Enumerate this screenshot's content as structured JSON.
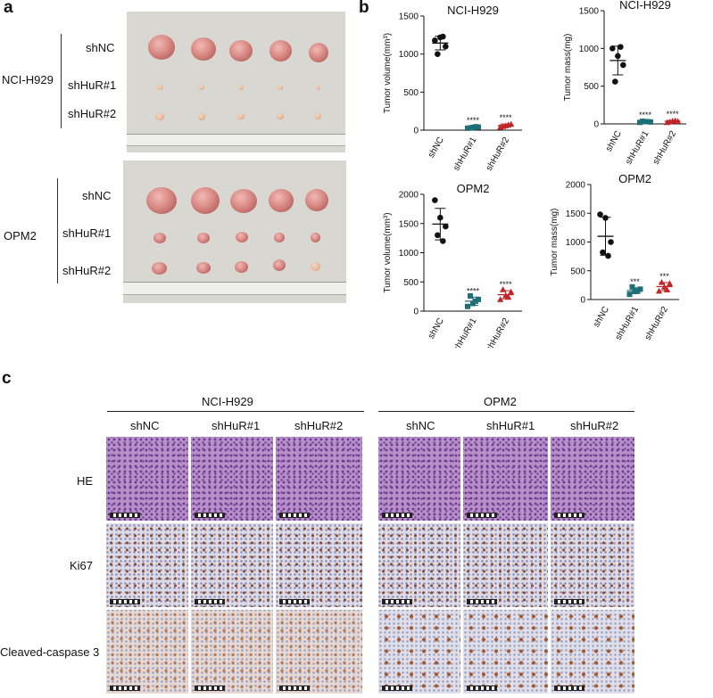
{
  "panel_a": {
    "letter": "a",
    "groups": [
      {
        "name": "NCI-H929",
        "rows": [
          "shNC",
          "shHuR#1",
          "shHuR#2"
        ]
      },
      {
        "name": "OPM2",
        "rows": [
          "shNC",
          "shHuR#1",
          "shHuR#2"
        ]
      }
    ]
  },
  "panel_b": {
    "letter": "b"
  },
  "chart_data": [
    {
      "type": "scatter",
      "title": "NCI-H929",
      "ylabel": "Tumor volume(mm³)",
      "categories": [
        "shNC",
        "shHuR#1",
        "shHuR#2"
      ],
      "ylim": [
        0,
        1500
      ],
      "yticks": [
        0,
        500,
        1000,
        1500
      ],
      "series": [
        {
          "category": "shNC",
          "points": [
            1180,
            1220,
            1100,
            1000,
            1230
          ],
          "mean": 1145,
          "sd": 90,
          "color": "#111111",
          "marker": "circle",
          "sig": ""
        },
        {
          "category": "shHuR#1",
          "points": [
            25,
            35,
            40,
            30,
            45
          ],
          "mean": 35,
          "sd": 10,
          "color": "#1f6f78",
          "marker": "square",
          "sig": "****"
        },
        {
          "category": "shHuR#2",
          "points": [
            40,
            60,
            80,
            50,
            70
          ],
          "mean": 60,
          "sd": 20,
          "color": "#c0262b",
          "marker": "triangle",
          "sig": "****"
        }
      ]
    },
    {
      "type": "scatter",
      "title": "NCI-H929",
      "ylabel": "Tumor mass(mg)",
      "categories": [
        "shNC",
        "shHuR#1",
        "shHuR#2"
      ],
      "ylim": [
        0,
        1500
      ],
      "yticks": [
        0,
        500,
        1000,
        1500
      ],
      "series": [
        {
          "category": "shNC",
          "points": [
            1000,
            900,
            780,
            560,
            1020
          ],
          "mean": 840,
          "sd": 190,
          "color": "#111111",
          "marker": "circle",
          "sig": ""
        },
        {
          "category": "shHuR#1",
          "points": [
            20,
            30,
            25,
            35,
            30
          ],
          "mean": 28,
          "sd": 8,
          "color": "#1f6f78",
          "marker": "square",
          "sig": "****"
        },
        {
          "category": "shHuR#2",
          "points": [
            20,
            40,
            35,
            30,
            45
          ],
          "mean": 35,
          "sd": 10,
          "color": "#c0262b",
          "marker": "triangle",
          "sig": "****"
        }
      ]
    },
    {
      "type": "scatter",
      "title": "OPM2",
      "ylabel": "Tumor volume(mm³)",
      "categories": [
        "shNC",
        "shHuR#1",
        "shHuR#2"
      ],
      "ylim": [
        0,
        2000
      ],
      "yticks": [
        0,
        500,
        1000,
        1500,
        2000
      ],
      "series": [
        {
          "category": "shNC",
          "points": [
            1900,
            1600,
            1450,
            1300,
            1200
          ],
          "mean": 1490,
          "sd": 270,
          "color": "#111111",
          "marker": "circle",
          "sig": ""
        },
        {
          "category": "shHuR#1",
          "points": [
            80,
            130,
            200,
            260,
            170
          ],
          "mean": 170,
          "sd": 70,
          "color": "#1f6f78",
          "marker": "square",
          "sig": "****"
        },
        {
          "category": "shHuR#2",
          "points": [
            200,
            270,
            330,
            370,
            240
          ],
          "mean": 280,
          "sd": 70,
          "color": "#c0262b",
          "marker": "triangle",
          "sig": "****"
        }
      ]
    },
    {
      "type": "scatter",
      "title": "OPM2",
      "ylabel": "Tumor mass(mg)",
      "categories": [
        "shNC",
        "shHuR#1",
        "shHuR#2"
      ],
      "ylim": [
        0,
        2000
      ],
      "yticks": [
        0,
        500,
        1000,
        1500,
        2000
      ],
      "series": [
        {
          "category": "shNC",
          "points": [
            1480,
            1420,
            1000,
            820,
            760
          ],
          "mean": 1100,
          "sd": 330,
          "color": "#111111",
          "marker": "circle",
          "sig": ""
        },
        {
          "category": "shHuR#1",
          "points": [
            90,
            140,
            180,
            220,
            150
          ],
          "mean": 155,
          "sd": 50,
          "color": "#1f6f78",
          "marker": "square",
          "sig": "***"
        },
        {
          "category": "shHuR#2",
          "points": [
            150,
            220,
            280,
            300,
            170
          ],
          "mean": 225,
          "sd": 70,
          "color": "#c0262b",
          "marker": "triangle",
          "sig": "***"
        }
      ]
    }
  ],
  "panel_c": {
    "letter": "c",
    "groups": [
      {
        "name": "NCI-H929",
        "columns": [
          "shNC",
          "shHuR#1",
          "shHuR#2"
        ]
      },
      {
        "name": "OPM2",
        "columns": [
          "shNC",
          "shHuR#1",
          "shHuR#2"
        ]
      }
    ],
    "stains": [
      "HE",
      "Ki67",
      "Cleaved-caspase 3"
    ]
  }
}
